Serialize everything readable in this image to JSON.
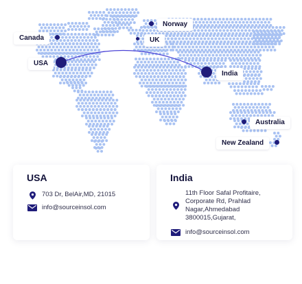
{
  "colors": {
    "dot": "#a9c2f2",
    "marker": "#1f1c7a",
    "arc": "#4b43d6"
  },
  "map": {
    "labels": {
      "canada": "Canada",
      "usa": "USA",
      "norway": "Norway",
      "uk": "UK",
      "india": "India",
      "australia": "Australia",
      "new_zealand": "New Zealand"
    }
  },
  "offices": {
    "usa": {
      "title": "USA",
      "address": "703 Dr, BelAir,MD, 21015",
      "email": "info@sourceinsol.com"
    },
    "india": {
      "title": "India",
      "address_lines": [
        "11th Floor Safal Profitaire,",
        "Corporate Rd, Prahlad",
        "Nagar,Ahmedabad",
        "3800015,Gujarat,"
      ],
      "email": "info@sourceinsol.com"
    }
  },
  "icons": {
    "location": "location-pin-icon",
    "email": "mail-icon"
  }
}
